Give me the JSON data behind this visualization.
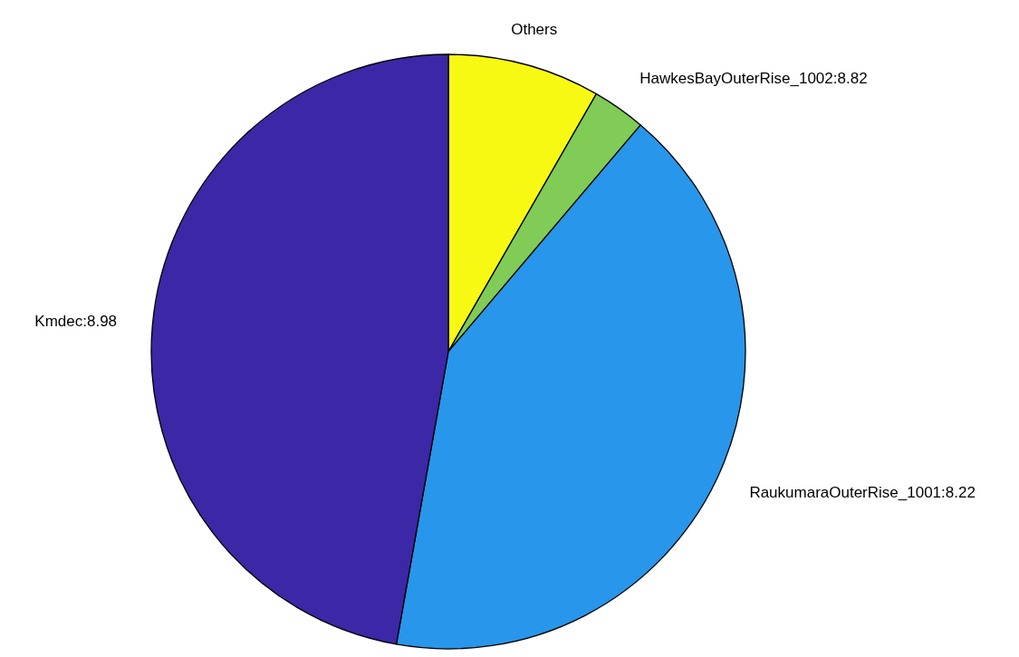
{
  "chart_data": {
    "type": "pie",
    "categories": [
      "Others",
      "HawkesBayOuterRise_1002:8.82",
      "RaukumaraOuterRise_1001:8.22",
      "Kmdec:8.98"
    ],
    "values": [
      8.3,
      2.9,
      41.6,
      47.2
    ],
    "colors": [
      "#f8f913",
      "#80cc56",
      "#2896ea",
      "#3c27a6"
    ],
    "legend": false
  }
}
